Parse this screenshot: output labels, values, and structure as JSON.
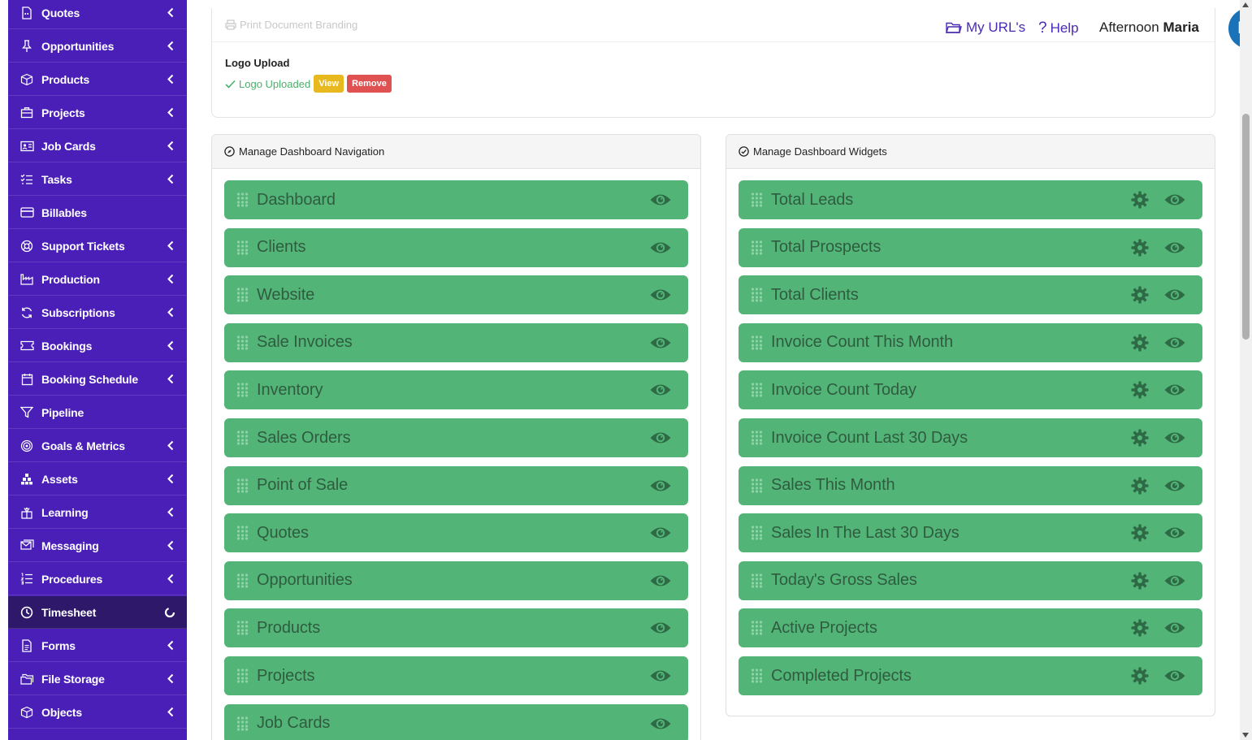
{
  "sidebar": {
    "items": [
      {
        "label": "Quotes",
        "icon": "quote-document-icon",
        "chevron": true,
        "active": false
      },
      {
        "label": "Opportunities",
        "icon": "pin-icon",
        "chevron": true,
        "active": false
      },
      {
        "label": "Products",
        "icon": "box-icon",
        "chevron": true,
        "active": false
      },
      {
        "label": "Projects",
        "icon": "briefcase-icon",
        "chevron": true,
        "active": false
      },
      {
        "label": "Job Cards",
        "icon": "id-card-icon",
        "chevron": true,
        "active": false
      },
      {
        "label": "Tasks",
        "icon": "checklist-icon",
        "chevron": true,
        "active": false
      },
      {
        "label": "Billables",
        "icon": "credit-card-icon",
        "chevron": false,
        "active": false
      },
      {
        "label": "Support Tickets",
        "icon": "lifebuoy-icon",
        "chevron": true,
        "active": false
      },
      {
        "label": "Production",
        "icon": "factory-icon",
        "chevron": true,
        "active": false
      },
      {
        "label": "Subscriptions",
        "icon": "refresh-icon",
        "chevron": true,
        "active": false
      },
      {
        "label": "Bookings",
        "icon": "ticket-icon",
        "chevron": true,
        "active": false
      },
      {
        "label": "Booking Schedule",
        "icon": "calendar-icon",
        "chevron": true,
        "active": false
      },
      {
        "label": "Pipeline",
        "icon": "funnel-icon",
        "chevron": false,
        "active": false
      },
      {
        "label": "Goals & Metrics",
        "icon": "target-icon",
        "chevron": true,
        "active": false
      },
      {
        "label": "Assets",
        "icon": "assets-stack-icon",
        "chevron": true,
        "active": false
      },
      {
        "label": "Learning",
        "icon": "learning-icon",
        "chevron": true,
        "active": false
      },
      {
        "label": "Messaging",
        "icon": "messaging-icon",
        "chevron": true,
        "active": false
      },
      {
        "label": "Procedures",
        "icon": "numbered-list-icon",
        "chevron": true,
        "active": false
      },
      {
        "label": "Timesheet",
        "icon": "clock-icon",
        "chevron": false,
        "active": true
      },
      {
        "label": "Forms",
        "icon": "form-document-icon",
        "chevron": true,
        "active": false
      },
      {
        "label": "File Storage",
        "icon": "folders-icon",
        "chevron": true,
        "active": false
      },
      {
        "label": "Objects",
        "icon": "cube-icon",
        "chevron": true,
        "active": false
      }
    ]
  },
  "topbar": {
    "my_urls": "My URL's",
    "help": "Help",
    "greeting_prefix": "Afternoon",
    "greeting_name": "Maria",
    "avatar_initials": "MJ"
  },
  "branding": {
    "print_title": "Print Document Branding",
    "logo_label": "Logo Upload",
    "uploaded_text": "Logo Uploaded",
    "view_label": "View",
    "remove_label": "Remove"
  },
  "navigation_panel": {
    "title": "Manage Dashboard Navigation",
    "items": [
      "Dashboard",
      "Clients",
      "Website",
      "Sale Invoices",
      "Inventory",
      "Sales Orders",
      "Point of Sale",
      "Quotes",
      "Opportunities",
      "Products",
      "Projects",
      "Job Cards"
    ]
  },
  "widgets_panel": {
    "title": "Manage Dashboard Widgets",
    "items": [
      "Total Leads",
      "Total Prospects",
      "Total Clients",
      "Invoice Count This Month",
      "Invoice Count Today",
      "Invoice Count Last 30 Days",
      "Sales This Month",
      "Sales In The Last 30 Days",
      "Today's Gross Sales",
      "Active Projects",
      "Completed Projects"
    ]
  },
  "colors": {
    "sidebar_bg": "#4a1fb8",
    "sidebar_active": "#2d1869",
    "row_green": "#52b577",
    "row_text": "#2f5c3f",
    "accent_link": "#4a2bb0",
    "avatar_bg": "#1a73b8"
  }
}
